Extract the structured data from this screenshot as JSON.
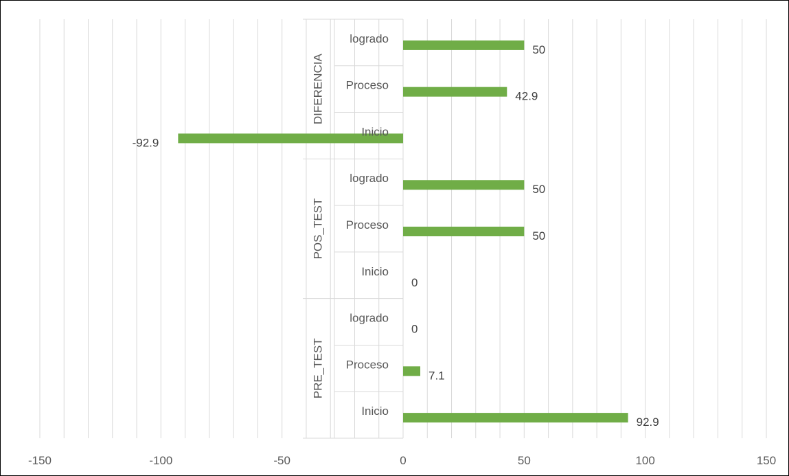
{
  "chart_data": {
    "type": "bar",
    "orientation": "horizontal",
    "groups": [
      {
        "name": "PRE_TEST",
        "categories": [
          "Inicio",
          "Proceso",
          "logrado"
        ],
        "values": [
          92.9,
          7.1,
          0
        ]
      },
      {
        "name": "POS_TEST",
        "categories": [
          "Inicio",
          "Proceso",
          "logrado"
        ],
        "values": [
          0,
          50,
          50
        ]
      },
      {
        "name": "DIFERENCIA",
        "categories": [
          "Inicio",
          "Proceso",
          "logrado"
        ],
        "values": [
          -92.9,
          42.9,
          50
        ]
      }
    ],
    "data_labels": [
      "92.9",
      "7.1",
      "0",
      "0",
      "50",
      "50",
      "-92.9",
      "42.9",
      "50"
    ],
    "xlim": [
      -150,
      150
    ],
    "xticks": [
      "-150",
      "-100",
      "-50",
      "0",
      "50",
      "100",
      "150"
    ],
    "minor_step": 10,
    "grid": true,
    "legend": "none",
    "bar_color": "#70AD47",
    "gridline_color": "#D9D9D9",
    "title": "",
    "xlabel": "",
    "ylabel": ""
  }
}
